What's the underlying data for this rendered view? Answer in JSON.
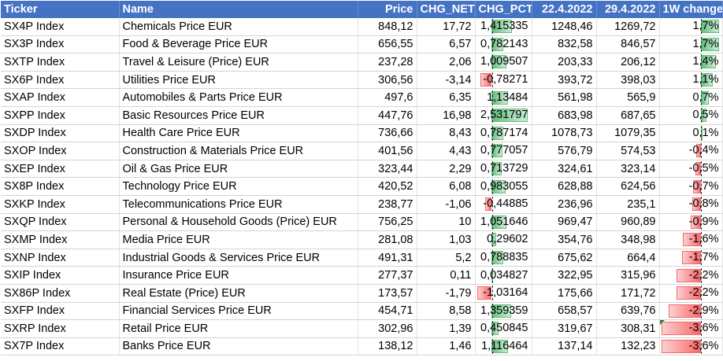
{
  "headers": {
    "ticker": "Ticker",
    "name": "Name",
    "price": "Price",
    "chg_net": "CHG_NET_",
    "chg_pct": "CHG_PCT_",
    "d1": "22.4.2022",
    "d2": "29.4.2022",
    "w1": "1W change"
  },
  "colors": {
    "header_bg": "#4472c4",
    "bar_positive": "#63be7b",
    "bar_negative": "#f8696b"
  },
  "rows": [
    {
      "ticker": "SX4P Index",
      "name": "Chemicals Price EUR",
      "price": "848,12",
      "chg_net": "17,72",
      "chg_pct": "1,415335",
      "pct_val": 1.415335,
      "d1": "1248,46",
      "d2": "1269,72",
      "w1": "1,7%",
      "w1_val": 1.7
    },
    {
      "ticker": "SX3P Index",
      "name": "Food & Beverage Price EUR",
      "price": "656,55",
      "chg_net": "6,57",
      "chg_pct": "0,782143",
      "pct_val": 0.782143,
      "d1": "832,58",
      "d2": "846,57",
      "w1": "1,7%",
      "w1_val": 1.7
    },
    {
      "ticker": "SXTP Index",
      "name": "Travel & Leisure (Price) EUR",
      "price": "237,28",
      "chg_net": "2,06",
      "chg_pct": "1,009507",
      "pct_val": 1.009507,
      "d1": "203,33",
      "d2": "206,12",
      "w1": "1,4%",
      "w1_val": 1.4
    },
    {
      "ticker": "SX6P Index",
      "name": "Utilities Price EUR",
      "price": "306,56",
      "chg_net": "-3,14",
      "chg_pct": "-0,78271",
      "pct_val": -0.78271,
      "d1": "393,72",
      "d2": "398,03",
      "w1": "1,1%",
      "w1_val": 1.1
    },
    {
      "ticker": "SXAP Index",
      "name": "Automobiles & Parts Price EUR",
      "price": "497,6",
      "chg_net": "6,35",
      "chg_pct": "1,13484",
      "pct_val": 1.13484,
      "d1": "561,98",
      "d2": "565,9",
      "w1": "0,7%",
      "w1_val": 0.7
    },
    {
      "ticker": "SXPP Index",
      "name": "Basic Resources Price EUR",
      "price": "447,76",
      "chg_net": "16,98",
      "chg_pct": "2,531797",
      "pct_val": 2.531797,
      "d1": "683,98",
      "d2": "687,65",
      "w1": "0,5%",
      "w1_val": 0.5
    },
    {
      "ticker": "SXDP Index",
      "name": "Health Care Price EUR",
      "price": "736,66",
      "chg_net": "8,43",
      "chg_pct": "0,787174",
      "pct_val": 0.787174,
      "d1": "1078,73",
      "d2": "1079,35",
      "w1": "0,1%",
      "w1_val": 0.1
    },
    {
      "ticker": "SXOP Index",
      "name": "Construction & Materials Price EUR",
      "price": "401,56",
      "chg_net": "4,43",
      "chg_pct": "0,777057",
      "pct_val": 0.777057,
      "d1": "576,79",
      "d2": "574,53",
      "w1": "-0,4%",
      "w1_val": -0.4
    },
    {
      "ticker": "SXEP Index",
      "name": "Oil & Gas Price EUR",
      "price": "323,44",
      "chg_net": "2,29",
      "chg_pct": "0,713729",
      "pct_val": 0.713729,
      "d1": "324,61",
      "d2": "323,14",
      "w1": "-0,5%",
      "w1_val": -0.5
    },
    {
      "ticker": "SX8P Index",
      "name": "Technology Price EUR",
      "price": "420,52",
      "chg_net": "6,08",
      "chg_pct": "0,983055",
      "pct_val": 0.983055,
      "d1": "628,88",
      "d2": "624,56",
      "w1": "-0,7%",
      "w1_val": -0.7
    },
    {
      "ticker": "SXKP Index",
      "name": "Telecommunications Price EUR",
      "price": "238,77",
      "chg_net": "-1,06",
      "chg_pct": "-0,44885",
      "pct_val": -0.44885,
      "d1": "236,96",
      "d2": "235,1",
      "w1": "-0,8%",
      "w1_val": -0.8
    },
    {
      "ticker": "SXQP Index",
      "name": "Personal & Household Goods (Price) EUR",
      "price": "756,25",
      "chg_net": "10",
      "chg_pct": "1,051646",
      "pct_val": 1.051646,
      "d1": "969,47",
      "d2": "960,89",
      "w1": "-0,9%",
      "w1_val": -0.9
    },
    {
      "ticker": "SXMP Index",
      "name": "Media Price EUR",
      "price": "281,08",
      "chg_net": "1,03",
      "chg_pct": "0,29602",
      "pct_val": 0.29602,
      "d1": "354,76",
      "d2": "348,98",
      "w1": "-1,6%",
      "w1_val": -1.6
    },
    {
      "ticker": "SXNP Index",
      "name": "Industrial Goods & Services Price EUR",
      "price": "491,31",
      "chg_net": "5,2",
      "chg_pct": "0,788835",
      "pct_val": 0.788835,
      "d1": "675,62",
      "d2": "664,4",
      "w1": "-1,7%",
      "w1_val": -1.7
    },
    {
      "ticker": "SXIP Index",
      "name": "Insurance Price EUR",
      "price": "277,37",
      "chg_net": "0,11",
      "chg_pct": "0,034827",
      "pct_val": 0.034827,
      "d1": "322,95",
      "d2": "315,96",
      "w1": "-2,2%",
      "w1_val": -2.2
    },
    {
      "ticker": "SX86P Index",
      "name": "Real Estate (Price) EUR",
      "price": "173,57",
      "chg_net": "-1,79",
      "chg_pct": "-1,03164",
      "pct_val": -1.03164,
      "d1": "175,66",
      "d2": "171,72",
      "w1": "-2,2%",
      "w1_val": -2.2
    },
    {
      "ticker": "SXFP Index",
      "name": "Financial Services Price EUR",
      "price": "454,71",
      "chg_net": "8,58",
      "chg_pct": "1,359359",
      "pct_val": 1.359359,
      "d1": "658,57",
      "d2": "639,76",
      "w1": "-2,9%",
      "w1_val": -2.9
    },
    {
      "ticker": "SXRP Index",
      "name": "Retail Price EUR",
      "price": "302,96",
      "chg_net": "1,39",
      "chg_pct": "0,450845",
      "pct_val": 0.450845,
      "d1": "319,67",
      "d2": "308,31",
      "w1": "-3,6%",
      "w1_val": -3.6,
      "marker": true
    },
    {
      "ticker": "SX7P Index",
      "name": "Banks Price EUR",
      "price": "138,12",
      "chg_net": "1,46",
      "chg_pct": "1,116464",
      "pct_val": 1.116464,
      "d1": "137,14",
      "d2": "132,23",
      "w1": "-3,6%",
      "w1_val": -3.6
    }
  ]
}
